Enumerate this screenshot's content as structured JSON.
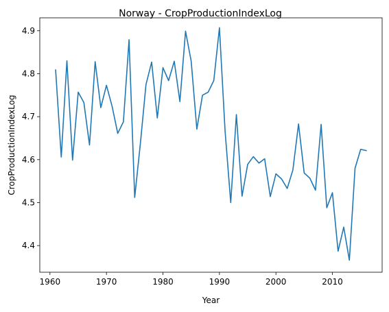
{
  "chart_data": {
    "type": "line",
    "title": "Norway - CropProductionIndexLog",
    "xlabel": "Year",
    "ylabel": "CropProductionIndexLog",
    "xlim": [
      1958.2,
      2018.8
    ],
    "ylim": [
      4.338,
      4.93
    ],
    "xticks": [
      1960,
      1970,
      1980,
      1990,
      2000,
      2010
    ],
    "yticks": [
      4.4,
      4.5,
      4.6,
      4.7,
      4.8,
      4.9
    ],
    "grid": false,
    "color": "#1f77b4",
    "x": [
      1961,
      1962,
      1963,
      1964,
      1965,
      1966,
      1967,
      1968,
      1969,
      1970,
      1971,
      1972,
      1973,
      1974,
      1975,
      1976,
      1977,
      1978,
      1979,
      1980,
      1981,
      1982,
      1983,
      1984,
      1985,
      1986,
      1987,
      1988,
      1989,
      1990,
      1991,
      1992,
      1993,
      1994,
      1995,
      1996,
      1997,
      1998,
      1999,
      2000,
      2001,
      2002,
      2003,
      2004,
      2005,
      2006,
      2007,
      2008,
      2009,
      2010,
      2011,
      2012,
      2013,
      2014,
      2015,
      2016
    ],
    "y": [
      4.809,
      4.606,
      4.83,
      4.599,
      4.757,
      4.733,
      4.634,
      4.828,
      4.721,
      4.773,
      4.724,
      4.661,
      4.688,
      4.879,
      4.512,
      4.637,
      4.775,
      4.827,
      4.697,
      4.814,
      4.784,
      4.829,
      4.735,
      4.899,
      4.829,
      4.671,
      4.75,
      4.757,
      4.784,
      4.907,
      4.666,
      4.5,
      4.705,
      4.515,
      4.589,
      4.607,
      4.592,
      4.602,
      4.514,
      4.567,
      4.555,
      4.533,
      4.576,
      4.683,
      4.569,
      4.557,
      4.529,
      4.682,
      4.488,
      4.523,
      4.387,
      4.443,
      4.366,
      4.58,
      4.624,
      4.621
    ]
  }
}
